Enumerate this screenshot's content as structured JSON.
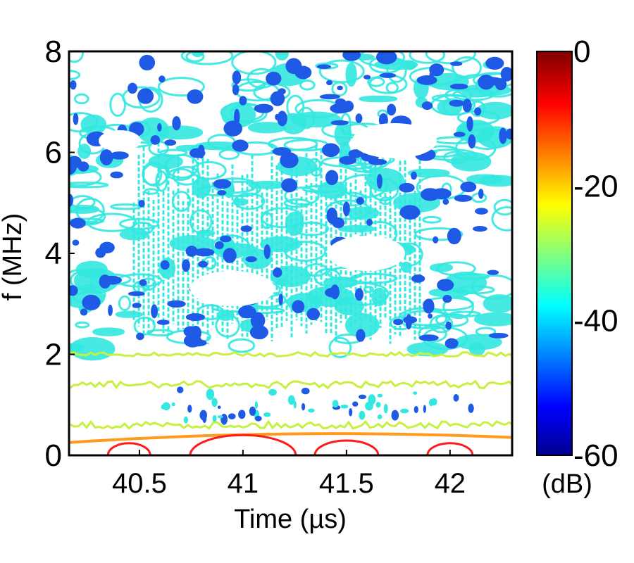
{
  "chart_data": {
    "type": "heatmap",
    "subtype": "contour spectrogram",
    "xlabel": "Time (µs)",
    "ylabel": "f (MHz)",
    "xlim": [
      40.16,
      42.3
    ],
    "ylim": [
      0,
      8
    ],
    "xticks": [
      40.5,
      41,
      41.5,
      42
    ],
    "xtick_labels": [
      "40.5",
      "41",
      "41.5",
      "42"
    ],
    "yticks": [
      0,
      2,
      4,
      6,
      8
    ],
    "ytick_labels": [
      "0",
      "2",
      "4",
      "6",
      "8"
    ],
    "colorbar": {
      "label": "(dB)",
      "range": [
        -60,
        0
      ],
      "ticks": [
        0,
        -20,
        -40,
        -60
      ],
      "tick_labels": [
        "0",
        "-20",
        "-40",
        "-60"
      ],
      "colormap": "jet"
    },
    "contours": [
      {
        "level_db": -5,
        "color": "#ff1a1a",
        "description": "closed contours",
        "centers_us": [
          40.45,
          41.0,
          41.5,
          42.0
        ],
        "f_mhz_top": 0.4
      },
      {
        "level_db": -15,
        "color": "#ff9a1a",
        "f_mhz": 0.4
      },
      {
        "level_db": -25,
        "color": "#c8f040",
        "f_mhz": [
          0.6,
          1.4,
          2.0
        ]
      },
      {
        "level_db": -40,
        "color": "#33e8e0",
        "f_mhz_range": [
          2.0,
          8.0
        ]
      },
      {
        "level_db": -50,
        "color": "#1e5ae6",
        "f_mhz_range": [
          2.0,
          8.0
        ]
      }
    ]
  }
}
